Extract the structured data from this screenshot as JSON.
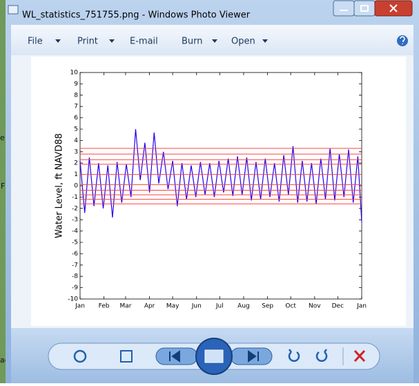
{
  "window": {
    "title": "WL_statistics_751755.png - Windows Photo Viewer",
    "menu": [
      "File",
      "Print",
      "E-mail",
      "Burn",
      "Open"
    ]
  },
  "desktop": {
    "fragments": [
      "e",
      "F",
      "ag"
    ]
  },
  "chart_data": {
    "type": "line",
    "ylabel": "Water Level, ft NAVD88",
    "x": [
      0,
      6,
      12,
      18,
      24,
      30,
      36,
      42,
      48,
      54,
      60,
      66,
      72,
      78,
      84,
      90,
      96,
      102,
      108,
      114,
      120,
      126,
      132,
      138,
      144,
      150,
      156,
      162,
      168,
      174,
      180,
      186,
      192,
      198,
      204,
      210,
      216,
      222,
      228,
      234,
      240,
      246,
      252,
      258,
      264,
      270,
      276,
      282,
      288,
      294,
      300,
      306,
      312,
      318,
      324,
      330,
      336,
      342,
      348,
      354,
      360,
      365
    ],
    "series": [
      {
        "color": "#2200ee",
        "values": [
          2.2,
          -2.4,
          2.5,
          -1.8,
          2.0,
          -2.0,
          1.8,
          -2.8,
          2.1,
          -1.5,
          1.9,
          -1.0,
          5.0,
          0.5,
          3.8,
          -0.6,
          4.7,
          0.2,
          3.0,
          -0.3,
          2.2,
          -1.8,
          2.0,
          -1.2,
          1.8,
          -1.0,
          2.1,
          -0.8,
          2.0,
          -1.0,
          2.2,
          -0.6,
          2.4,
          -0.9,
          2.6,
          -0.8,
          2.5,
          -1.3,
          2.1,
          -1.2,
          2.4,
          -1.0,
          2.0,
          -1.4,
          2.7,
          -0.8,
          3.5,
          -1.5,
          2.2,
          -1.4,
          2.0,
          -1.6,
          2.4,
          -1.2,
          3.3,
          -1.3,
          2.8,
          -1.0,
          3.2,
          -1.5,
          2.6,
          -3.2
        ]
      }
    ],
    "hlines": [
      3.3,
      2.8,
      2.3,
      1.9,
      1.0,
      0.1,
      -0.4,
      -0.8,
      -1.2,
      -1.6
    ],
    "hline_color": "#ff4040",
    "xlim": [
      0,
      365
    ],
    "xticks": [
      {
        "value": 0,
        "label": "Jan"
      },
      {
        "value": 31,
        "label": "Feb"
      },
      {
        "value": 59,
        "label": "Mar"
      },
      {
        "value": 90,
        "label": "Apr"
      },
      {
        "value": 120,
        "label": "May"
      },
      {
        "value": 151,
        "label": "Jun"
      },
      {
        "value": 181,
        "label": "Jul"
      },
      {
        "value": 212,
        "label": "Aug"
      },
      {
        "value": 243,
        "label": "Sep"
      },
      {
        "value": 273,
        "label": "Oct"
      },
      {
        "value": 304,
        "label": "Nov"
      },
      {
        "value": 334,
        "label": "Dec"
      },
      {
        "value": 365,
        "label": "Jan"
      }
    ],
    "ylim": [
      -10,
      10
    ],
    "yticks": [
      -10,
      -9,
      -8,
      -7,
      -6,
      -5,
      -4,
      -3,
      -2,
      -1,
      0,
      1,
      2,
      3,
      4,
      5,
      6,
      7,
      8,
      9,
      10
    ]
  }
}
